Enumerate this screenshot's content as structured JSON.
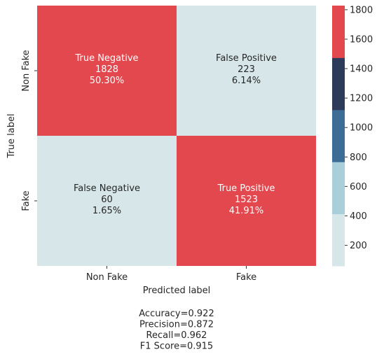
{
  "chart_data": {
    "type": "heatmap",
    "xlabel": "Predicted label",
    "ylabel": "True label",
    "x_categories": [
      "Non Fake",
      "Fake"
    ],
    "y_categories": [
      "Non Fake",
      "Fake"
    ],
    "cells": [
      [
        {
          "name": "True Negative",
          "value": 1828,
          "value_label": "1828",
          "percent": "50.30%"
        },
        {
          "name": "False Positive",
          "value": 223,
          "value_label": "223",
          "percent": "6.14%"
        }
      ],
      [
        {
          "name": "False Negative",
          "value": 60,
          "value_label": "60",
          "percent": "1.65%"
        },
        {
          "name": "True Positive",
          "value": 1523,
          "value_label": "1523",
          "percent": "41.91%"
        }
      ]
    ],
    "colorbar": {
      "range": [
        60,
        1828
      ],
      "ticks": [
        "200",
        "400",
        "600",
        "800",
        "1000",
        "1200",
        "1400",
        "1600",
        "1800"
      ],
      "colors": [
        "#d7e6e8",
        "#a9cfdb",
        "#3d6c96",
        "#2d3a5a",
        "#e2484e"
      ]
    },
    "stats": [
      "Accuracy=0.922",
      "Precision=0.872",
      "Recall=0.962",
      "F1 Score=0.915"
    ]
  }
}
